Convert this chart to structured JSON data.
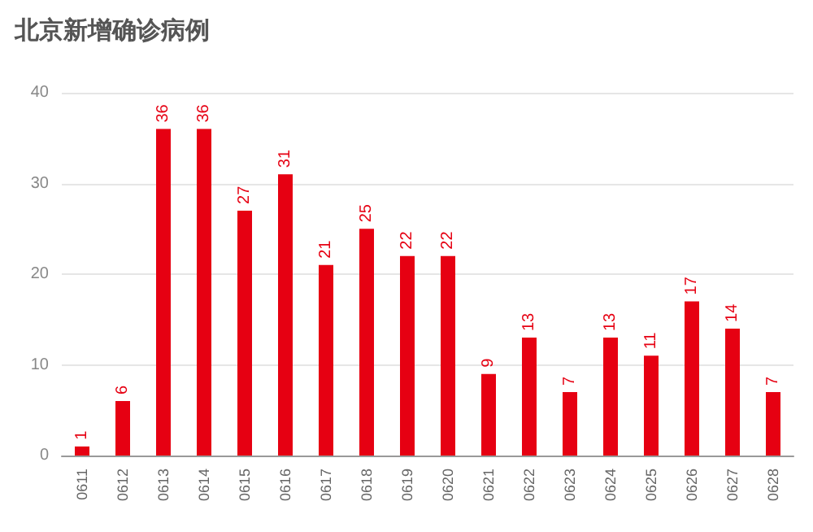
{
  "chart_data": {
    "type": "bar",
    "title": "北京新增确诊病例",
    "categories": [
      "0611",
      "0612",
      "0613",
      "0614",
      "0615",
      "0616",
      "0617",
      "0618",
      "0619",
      "0620",
      "0621",
      "0622",
      "0623",
      "0624",
      "0625",
      "0626",
      "0627",
      "0628"
    ],
    "values": [
      1,
      6,
      36,
      36,
      27,
      31,
      21,
      25,
      22,
      22,
      9,
      13,
      7,
      13,
      11,
      17,
      14,
      7
    ],
    "color": "#e60012",
    "ylim": [
      0,
      40
    ],
    "yticks": [
      0,
      10,
      20,
      30,
      40
    ],
    "grid": "y",
    "data_labels": true
  }
}
